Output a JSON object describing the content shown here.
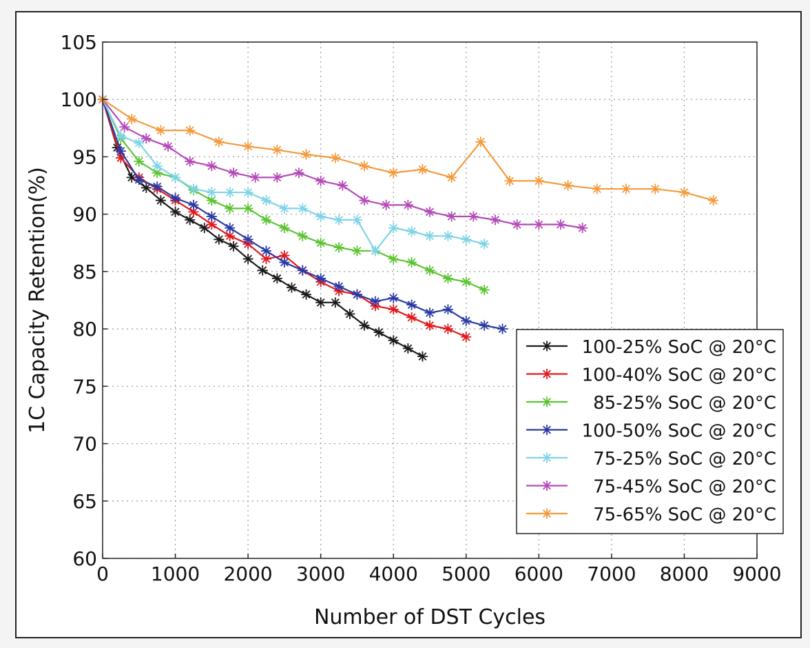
{
  "chart_data": {
    "type": "line",
    "title": "",
    "xlabel": "Number of DST Cycles",
    "ylabel": "1C Capacity Retention(%)",
    "xlim": [
      0,
      9000
    ],
    "ylim": [
      60,
      105
    ],
    "xticks": [
      0,
      1000,
      2000,
      3000,
      4000,
      5000,
      6000,
      7000,
      8000,
      9000
    ],
    "yticks": [
      60,
      65,
      70,
      75,
      80,
      85,
      90,
      95,
      100,
      105
    ],
    "grid": "dotted",
    "legend_position": "bottom-right",
    "marker": "asterisk",
    "series": [
      {
        "name": "100-25% SoC @ 20°C",
        "color": "#1a1a1a",
        "x": [
          0,
          200,
          400,
          600,
          800,
          1000,
          1200,
          1400,
          1600,
          1800,
          2000,
          2200,
          2400,
          2600,
          2800,
          3000,
          3200,
          3400,
          3600,
          3800,
          4000,
          4200,
          4400
        ],
        "y": [
          100,
          95.8,
          93.2,
          92.3,
          91.2,
          90.2,
          89.5,
          88.8,
          87.8,
          87.2,
          86.1,
          85.1,
          84.4,
          83.6,
          83.0,
          82.3,
          82.3,
          81.3,
          80.3,
          79.7,
          79.0,
          78.3,
          77.6
        ]
      },
      {
        "name": "100-40% SoC @ 20°C",
        "color": "#e0191c",
        "x": [
          0,
          250,
          500,
          750,
          1000,
          1250,
          1500,
          1750,
          2000,
          2250,
          2500,
          2750,
          3000,
          3250,
          3500,
          3750,
          4000,
          4250,
          4500,
          4750,
          5000
        ],
        "y": [
          100,
          94.9,
          93.2,
          92.2,
          91.2,
          90.2,
          89.1,
          88.1,
          87.4,
          86.1,
          86.4,
          85.1,
          84.1,
          83.3,
          83.0,
          82.0,
          81.7,
          81.0,
          80.3,
          80.0,
          79.3
        ]
      },
      {
        "name": "85-25% SoC @ 20°C",
        "color": "#5cc433",
        "x": [
          0,
          250,
          500,
          750,
          1000,
          1250,
          1500,
          1750,
          2000,
          2250,
          2500,
          2750,
          3000,
          3250,
          3500,
          3750,
          4000,
          4250,
          4500,
          4750,
          5000,
          5250
        ],
        "y": [
          100,
          96.6,
          94.6,
          93.6,
          93.2,
          92.1,
          91.2,
          90.5,
          90.5,
          89.5,
          88.8,
          88.1,
          87.5,
          87.1,
          86.8,
          86.8,
          86.1,
          85.8,
          85.1,
          84.4,
          84.1,
          83.4
        ]
      },
      {
        "name": "100-50% SoC @ 20°C",
        "color": "#2b39a4",
        "x": [
          0,
          250,
          500,
          750,
          1000,
          1250,
          1500,
          1750,
          2000,
          2250,
          2500,
          2750,
          3000,
          3250,
          3500,
          3750,
          4000,
          4250,
          4500,
          4750,
          5000,
          5250,
          5500
        ],
        "y": [
          100,
          95.5,
          93.0,
          92.4,
          91.4,
          90.8,
          89.8,
          88.8,
          87.8,
          86.8,
          85.8,
          85.1,
          84.4,
          83.7,
          83.0,
          82.4,
          82.7,
          82.1,
          81.4,
          81.7,
          80.7,
          80.3,
          80.0
        ]
      },
      {
        "name": "75-25% SoC @ 20°C",
        "color": "#7fd3e8",
        "x": [
          0,
          250,
          500,
          750,
          1000,
          1250,
          1500,
          1750,
          2000,
          2250,
          2500,
          2750,
          3000,
          3250,
          3500,
          3750,
          4000,
          4250,
          4500,
          4750,
          5000,
          5250
        ],
        "y": [
          100,
          96.8,
          96.2,
          94.2,
          93.2,
          92.2,
          91.9,
          91.9,
          91.9,
          91.2,
          90.5,
          90.5,
          89.8,
          89.5,
          89.5,
          86.8,
          88.8,
          88.5,
          88.1,
          88.1,
          87.8,
          87.4
        ]
      },
      {
        "name": "75-45% SoC @ 20°C",
        "color": "#b44ab8",
        "x": [
          0,
          300,
          600,
          900,
          1200,
          1500,
          1800,
          2100,
          2400,
          2700,
          3000,
          3300,
          3600,
          3900,
          4200,
          4500,
          4800,
          5100,
          5400,
          5700,
          6000,
          6300,
          6600
        ],
        "y": [
          100,
          97.6,
          96.6,
          95.9,
          94.6,
          94.2,
          93.6,
          93.2,
          93.2,
          93.6,
          92.9,
          92.5,
          91.2,
          90.8,
          90.8,
          90.2,
          89.8,
          89.8,
          89.5,
          89.1,
          89.1,
          89.1,
          88.8
        ]
      },
      {
        "name": "75-65% SoC @ 20°C",
        "color": "#f39a3c",
        "x": [
          0,
          400,
          800,
          1200,
          1600,
          2000,
          2400,
          2800,
          3200,
          3600,
          4000,
          4400,
          4800,
          5200,
          5600,
          6000,
          6400,
          6800,
          7200,
          7600,
          8000,
          8400
        ],
        "y": [
          100,
          98.3,
          97.3,
          97.3,
          96.3,
          95.9,
          95.6,
          95.2,
          94.9,
          94.2,
          93.6,
          93.9,
          93.2,
          96.3,
          92.9,
          92.9,
          92.5,
          92.2,
          92.2,
          92.2,
          91.9,
          91.2
        ]
      }
    ]
  }
}
